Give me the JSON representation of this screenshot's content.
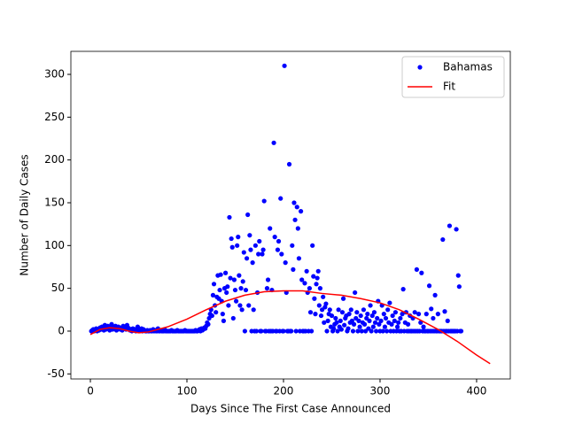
{
  "chart_data": {
    "type": "scatter",
    "xlabel": "Days Since The First Case Announced",
    "ylabel": "Number of Daily Cases",
    "xlim": [
      -20.2,
      434.9
    ],
    "ylim": [
      -55.9,
      326.9
    ],
    "xticks": [
      0,
      100,
      200,
      300,
      400
    ],
    "yticks": [
      -50,
      0,
      50,
      100,
      150,
      200,
      250,
      300
    ],
    "legend": "upper right",
    "series": [
      {
        "name": "Bahamas",
        "color": "blue",
        "mode": "markers",
        "x": [
          1,
          2,
          3,
          4,
          5,
          6,
          7,
          8,
          9,
          10,
          11,
          12,
          13,
          14,
          15,
          16,
          17,
          18,
          19,
          20,
          21,
          22,
          23,
          24,
          25,
          26,
          27,
          28,
          29,
          30,
          31,
          32,
          33,
          34,
          35,
          36,
          37,
          38,
          39,
          40,
          41,
          42,
          43,
          44,
          45,
          46,
          47,
          48,
          49,
          50,
          51,
          52,
          53,
          54,
          55,
          56,
          57,
          58,
          59,
          60,
          61,
          62,
          63,
          64,
          65,
          66,
          67,
          68,
          69,
          70,
          71,
          72,
          73,
          74,
          75,
          76,
          77,
          78,
          79,
          80,
          81,
          82,
          83,
          84,
          85,
          86,
          87,
          88,
          89,
          90,
          91,
          92,
          93,
          94,
          95,
          96,
          97,
          98,
          99,
          100,
          101,
          102,
          103,
          104,
          105,
          106,
          107,
          108,
          109,
          110,
          111,
          112,
          113,
          114,
          115,
          116,
          117,
          118,
          119,
          120,
          121,
          122,
          123,
          124,
          125,
          126,
          127,
          128,
          129,
          130,
          131,
          132,
          133,
          134,
          135,
          136,
          137,
          138,
          139,
          140,
          141,
          142,
          143,
          144,
          145,
          146,
          147,
          148,
          149,
          150,
          151,
          152,
          153,
          154,
          155,
          156,
          157,
          158,
          159,
          160,
          161,
          162,
          163,
          164,
          165,
          166,
          167,
          168,
          169,
          170,
          171,
          172,
          173,
          174,
          175,
          176,
          177,
          178,
          179,
          180,
          181,
          182,
          183,
          184,
          185,
          186,
          187,
          188,
          189,
          190,
          191,
          192,
          193,
          194,
          195,
          196,
          197,
          198,
          199,
          200,
          201,
          202,
          203,
          204,
          205,
          206,
          207,
          208,
          209,
          210,
          211,
          212,
          213,
          214,
          215,
          216,
          217,
          218,
          219,
          220,
          221,
          222,
          223,
          224,
          225,
          226,
          227,
          228,
          229,
          230,
          231,
          232,
          233,
          234,
          235,
          236,
          237,
          238,
          239,
          240,
          241,
          242,
          243,
          244,
          245,
          246,
          247,
          248,
          249,
          250,
          251,
          252,
          253,
          254,
          255,
          256,
          257,
          258,
          259,
          260,
          261,
          262,
          263,
          264,
          265,
          266,
          267,
          268,
          269,
          270,
          271,
          272,
          273,
          274,
          275,
          276,
          277,
          278,
          279,
          280,
          281,
          282,
          283,
          284,
          285,
          286,
          287,
          288,
          289,
          290,
          291,
          292,
          293,
          294,
          295,
          296,
          297,
          298,
          299,
          300,
          301,
          302,
          303,
          304,
          305,
          306,
          307,
          308,
          309,
          310,
          311,
          312,
          313,
          314,
          315,
          316,
          317,
          318,
          319,
          320,
          321,
          322,
          323,
          324,
          325,
          326,
          327,
          328,
          329,
          330,
          331,
          332,
          333,
          334,
          335,
          336,
          337,
          338,
          339,
          340,
          341,
          342,
          343,
          344,
          345,
          346,
          347,
          348,
          349,
          350,
          351,
          352,
          353,
          354,
          355,
          356,
          357,
          358,
          359,
          360,
          361,
          362,
          363,
          364,
          365,
          366,
          367,
          368,
          369,
          370,
          371,
          372,
          373,
          374,
          375,
          376,
          377,
          378,
          379,
          380,
          381,
          382,
          383,
          384
        ],
        "values": [
          0,
          1,
          2,
          0,
          1,
          3,
          0,
          2,
          1,
          4,
          2,
          5,
          3,
          1,
          7,
          2,
          4,
          6,
          3,
          1,
          5,
          8,
          2,
          4,
          3,
          6,
          1,
          2,
          5,
          3,
          2,
          4,
          1,
          6,
          3,
          5,
          2,
          7,
          4,
          3,
          1,
          2,
          0,
          3,
          1,
          2,
          0,
          1,
          5,
          2,
          0,
          1,
          3,
          0,
          2,
          1,
          0,
          0,
          1,
          0,
          0,
          1,
          0,
          0,
          2,
          0,
          1,
          0,
          0,
          3,
          0,
          0,
          1,
          0,
          0,
          0,
          2,
          0,
          0,
          0,
          0,
          0,
          0,
          1,
          0,
          0,
          0,
          0,
          0,
          1,
          0,
          0,
          0,
          0,
          0,
          0,
          0,
          1,
          0,
          0,
          0,
          0,
          0,
          0,
          0,
          0,
          0,
          0,
          1,
          0,
          0,
          1,
          2,
          0,
          3,
          1,
          2,
          4,
          3,
          6,
          10,
          8,
          15,
          20,
          25,
          18,
          42,
          55,
          30,
          22,
          40,
          65,
          38,
          48,
          66,
          35,
          20,
          12,
          50,
          68,
          45,
          52,
          30,
          133,
          62,
          108,
          98,
          15,
          60,
          48,
          35,
          100,
          110,
          65,
          30,
          50,
          25,
          58,
          92,
          0,
          48,
          85,
          136,
          30,
          112,
          95,
          0,
          80,
          25,
          0,
          100,
          0,
          45,
          90,
          105,
          0,
          0,
          90,
          95,
          152,
          0,
          0,
          50,
          60,
          0,
          120,
          0,
          48,
          0,
          220,
          110,
          0,
          0,
          95,
          105,
          0,
          155,
          90,
          0,
          0,
          310,
          80,
          45,
          0,
          0,
          195,
          0,
          0,
          100,
          72,
          150,
          130,
          0,
          145,
          120,
          85,
          0,
          140,
          60,
          0,
          0,
          56,
          0,
          70,
          45,
          0,
          50,
          22,
          0,
          100,
          64,
          38,
          20,
          55,
          62,
          70,
          30,
          50,
          18,
          25,
          40,
          10,
          28,
          32,
          0,
          12,
          20,
          25,
          5,
          18,
          0,
          3,
          8,
          15,
          10,
          0,
          25,
          5,
          12,
          2,
          22,
          38,
          7,
          15,
          18,
          0,
          3,
          20,
          10,
          25,
          12,
          0,
          8,
          45,
          15,
          22,
          0,
          12,
          5,
          18,
          0,
          10,
          25,
          8,
          0,
          15,
          20,
          3,
          12,
          30,
          0,
          18,
          5,
          22,
          10,
          0,
          15,
          35,
          8,
          0,
          12,
          30,
          0,
          20,
          5,
          15,
          0,
          25,
          10,
          33,
          0,
          8,
          18,
          0,
          12,
          22,
          0,
          5,
          10,
          0,
          15,
          0,
          20,
          49,
          0,
          10,
          22,
          0,
          8,
          0,
          18,
          0,
          0,
          15,
          0,
          22,
          0,
          72,
          0,
          20,
          0,
          10,
          68,
          0,
          5,
          0,
          0,
          20,
          0,
          0,
          53,
          0,
          26,
          0,
          15,
          0,
          42,
          0,
          0,
          20,
          0,
          0,
          0,
          0,
          107,
          0,
          23,
          0,
          0,
          12,
          0,
          123,
          0,
          0,
          0,
          0,
          0,
          0,
          119,
          0,
          65,
          52,
          0,
          0
        ]
      },
      {
        "name": "Fit",
        "color": "red",
        "mode": "line",
        "x": [
          0,
          10,
          20,
          30,
          40,
          50,
          60,
          80,
          100,
          120,
          140,
          160,
          180,
          200,
          220,
          240,
          260,
          280,
          300,
          320,
          340,
          360,
          380,
          400,
          414
        ],
        "values": [
          -4,
          2,
          4,
          3,
          0,
          -2,
          -1,
          5,
          14,
          25,
          35,
          42,
          46,
          47,
          47,
          44,
          42,
          38,
          33,
          25,
          14,
          2,
          -12,
          -28,
          -38
        ]
      }
    ]
  }
}
